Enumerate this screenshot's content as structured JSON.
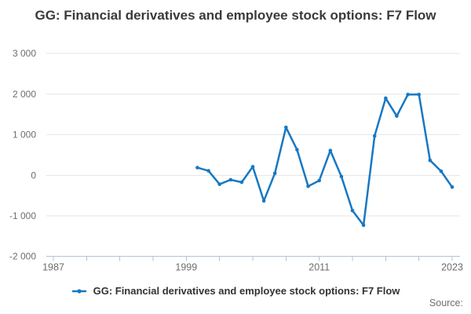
{
  "title": "GG: Financial derivatives and employee stock options: F7 Flow",
  "legend": {
    "label": "GG: Financial derivatives and employee stock options: F7 Flow"
  },
  "source_label": "Source:",
  "chart_data": {
    "type": "line",
    "title": "GG: Financial derivatives and employee stock options: F7 Flow",
    "color": "#1778c2",
    "grid": "horizontal",
    "legend_position": "bottom-center",
    "xlim": [
      1987,
      2024
    ],
    "ylim": [
      -2000,
      3000
    ],
    "x": [
      2000,
      2001,
      2002,
      2003,
      2004,
      2005,
      2006,
      2007,
      2008,
      2009,
      2010,
      2011,
      2012,
      2013,
      2014,
      2015,
      2016,
      2017,
      2018,
      2019,
      2020,
      2021,
      2022,
      2023
    ],
    "series": [
      {
        "name": "GG: Financial derivatives and employee stock options: F7 Flow",
        "values": [
          190,
          110,
          -220,
          -110,
          -170,
          210,
          -630,
          50,
          1180,
          630,
          -270,
          -130,
          610,
          -30,
          -870,
          -1230,
          970,
          1900,
          1460,
          1990,
          1990,
          370,
          100,
          -290
        ]
      }
    ],
    "xticks": [
      1987,
      1990,
      1993,
      1996,
      1999,
      2002,
      2005,
      2008,
      2011,
      2014,
      2017,
      2020,
      2023
    ],
    "xtick_labels": [
      {
        "value": 1987,
        "label": "1987"
      },
      {
        "value": 1999,
        "label": "1999"
      },
      {
        "value": 2011,
        "label": "2011"
      },
      {
        "value": 2023,
        "label": "2023"
      }
    ],
    "yticks": [
      {
        "value": 3000,
        "label": "3 000"
      },
      {
        "value": 2000,
        "label": "2 000"
      },
      {
        "value": 1000,
        "label": "1 000"
      },
      {
        "value": 0,
        "label": "0"
      },
      {
        "value": -1000,
        "label": "-1 000"
      },
      {
        "value": -2000,
        "label": "-2 000"
      }
    ]
  }
}
